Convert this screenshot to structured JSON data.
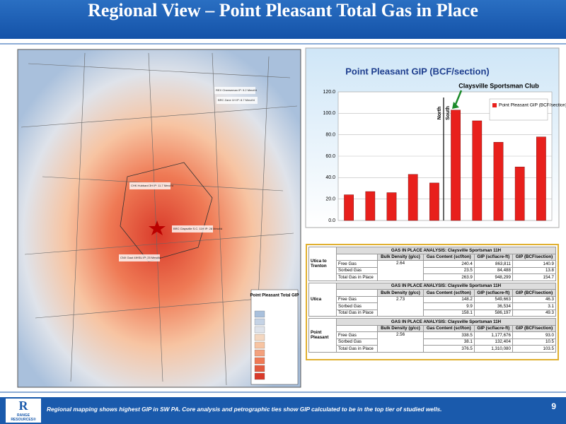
{
  "header": {
    "title": "Regional View – Point Pleasant Total Gas in Place"
  },
  "chart_data": {
    "type": "bar",
    "title": "Point Pleasant GIP  (BCF/section)",
    "categories": [
      null,
      null,
      null,
      null,
      null,
      null,
      null,
      null,
      null,
      null
    ],
    "series": [
      {
        "name": "Point Pleasant GIP (BCF/section)",
        "color": "#e8201c",
        "values": [
          24,
          27,
          26,
          43,
          35,
          103,
          93,
          73,
          50,
          78
        ]
      }
    ],
    "ylim": [
      0,
      120
    ],
    "yticks": [
      {
        "value": 0,
        "label": "0.0"
      },
      {
        "value": 20,
        "label": "20.0"
      },
      {
        "value": 40,
        "label": "40.0"
      },
      {
        "value": 60,
        "label": "60.0"
      },
      {
        "value": 80,
        "label": "80.0"
      },
      {
        "value": 100,
        "label": "100.0"
      },
      {
        "value": 120,
        "label": "120.0"
      }
    ],
    "grid": true,
    "legend": "upper right",
    "annotations": [
      "North",
      "South",
      "Claysville Sportsman Club"
    ]
  },
  "map": {
    "labels": [
      "REX Cheeseman IP: 9.2 Mmcf/d",
      "BRC Zane 1H IP: 8.7 Mmcf/d",
      "CHK Hubbard 3H IP: 11.7 Mmcf/d",
      "BRC Claysville S.C. 11H IP: 28 Mmcf/d",
      "CNX Gaut 4IHSU IP: 25 Mmcf/d"
    ],
    "legend_title": "Point Pleasant Total GIP"
  },
  "table": {
    "columns": [
      "Bulk Density (g/cc)",
      "Gas Content (scf/ton)",
      "GIP (scf/acre-ft)",
      "GIP (BCF/section)"
    ],
    "sections": [
      {
        "title": "GAS IN PLACE ANALYSIS: Claysville Sportsman 11H",
        "label": "Utica to Trenton",
        "density": "2.64",
        "rows": [
          [
            "Free Gas",
            "240.4",
            "863,811",
            "140.9"
          ],
          [
            "Sorbed Gas",
            "23.5",
            "84,488",
            "13.8"
          ],
          [
            "Total Gas in Place",
            "263.9",
            "948,299",
            "154.7"
          ]
        ]
      },
      {
        "title": "GAS IN PLACE ANALYSIS: Claysville Sportsman 11H",
        "label": "Utica",
        "density": "2.73",
        "rows": [
          [
            "Free Gas",
            "148.2",
            "549,663",
            "46.3"
          ],
          [
            "Sorbed Gas",
            "9.9",
            "36,534",
            "3.1"
          ],
          [
            "Total Gas in Place",
            "158.1",
            "586,197",
            "49.3"
          ]
        ]
      },
      {
        "title": "GAS IN PLACE ANALYSIS: Claysville Sportsman 11H",
        "label": "Point Pleasant",
        "density": "2.56",
        "rows": [
          [
            "Free Gas",
            "338.5",
            "1,177,676",
            "93.0"
          ],
          [
            "Sorbed Gas",
            "38.1",
            "132,404",
            "10.5"
          ],
          [
            "Total Gas in Place",
            "376.5",
            "1,310,080",
            "103.5"
          ]
        ]
      }
    ]
  },
  "footer": {
    "text": "Regional mapping shows highest GIP in SW PA. Core analysis and petrographic ties show GIP calculated to be in the top tier of studied wells.",
    "page": "9",
    "logo": "RANGE RESOURCES®"
  }
}
